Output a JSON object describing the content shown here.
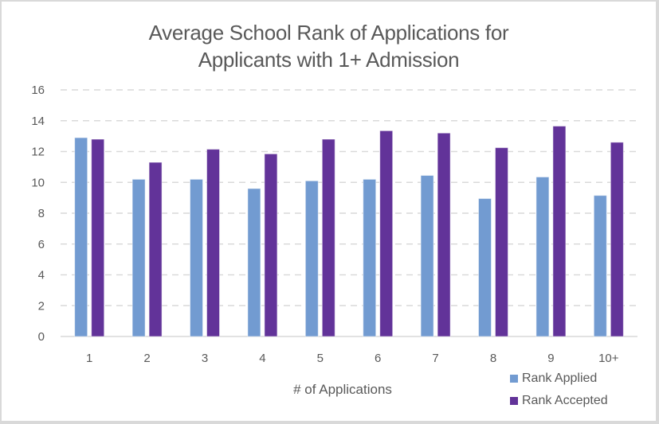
{
  "chart_data": {
    "type": "bar",
    "title_lines": [
      "Average School Rank of Applications for",
      "Applicants with 1+ Admission"
    ],
    "xlabel": "# of Applications",
    "ylabel": "",
    "categories": [
      "1",
      "2",
      "3",
      "4",
      "5",
      "6",
      "7",
      "8",
      "9",
      "10+"
    ],
    "ylim": [
      0,
      16
    ],
    "yticks": [
      0,
      2,
      4,
      6,
      8,
      10,
      12,
      14,
      16
    ],
    "grid": true,
    "legend_position": "bottom-right",
    "series": [
      {
        "name": "Rank Applied",
        "color": "#729BD1",
        "values": [
          12.9,
          10.2,
          10.2,
          9.6,
          10.1,
          10.2,
          10.45,
          8.95,
          10.35,
          9.15
        ]
      },
      {
        "name": "Rank Accepted",
        "color": "#623399",
        "values": [
          12.8,
          11.3,
          12.15,
          11.85,
          12.8,
          13.35,
          13.2,
          12.25,
          13.65,
          12.6
        ]
      }
    ]
  }
}
